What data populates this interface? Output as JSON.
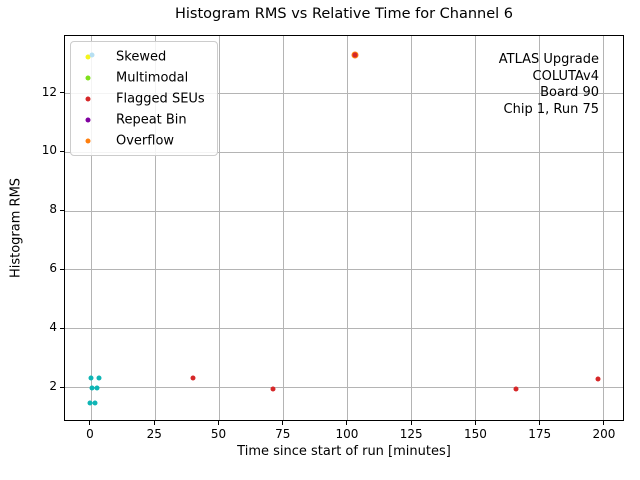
{
  "title": "Histogram RMS vs Relative Time for Channel 6",
  "axes": {
    "xlabel": "Time since start of run [minutes]",
    "ylabel": "Histogram RMS",
    "xticks": [
      0,
      25,
      50,
      75,
      100,
      125,
      150,
      175,
      200
    ],
    "yticks": [
      2,
      4,
      6,
      8,
      10,
      12
    ],
    "xlim": [
      -10.1,
      207.8
    ],
    "ylim": [
      0.86,
      13.95
    ],
    "grid": true,
    "grid_color": "#b4b4b4"
  },
  "legend": {
    "position": "upper-left",
    "items": [
      {
        "label": "Skewed",
        "marker_colors": [
          "#f4f51c",
          "#b6dff2"
        ]
      },
      {
        "label": "Multimodal",
        "marker_colors": [
          "#7fe01b"
        ]
      },
      {
        "label": "Flagged SEUs",
        "marker_colors": [
          "#d62728"
        ]
      },
      {
        "label": "Repeat Bin",
        "marker_colors": [
          "#8000a0"
        ]
      },
      {
        "label": "Overflow",
        "marker_colors": [
          "#ff7f0e"
        ]
      }
    ]
  },
  "annotation": {
    "lines": [
      "ATLAS Upgrade",
      "COLUTAv4",
      "Board 90",
      "Chip 1, Run 75"
    ]
  },
  "chart_data": {
    "type": "scatter",
    "title": "Histogram RMS vs Relative Time for Channel 6",
    "xlabel": "Time since start of run [minutes]",
    "ylabel": "Histogram RMS",
    "xlim": [
      -10.1,
      207.8
    ],
    "ylim": [
      0.86,
      13.95
    ],
    "grid": true,
    "legend_position": "upper-left",
    "series": [
      {
        "name": "normal",
        "color": "#0fb5b5",
        "marker_size": 5,
        "points": [
          [
            0,
            2.3
          ],
          [
            3,
            2.3
          ],
          [
            0.5,
            1.95
          ],
          [
            2.5,
            1.95
          ],
          [
            -0.5,
            1.45
          ],
          [
            1.5,
            1.45
          ]
        ]
      },
      {
        "name": "overflow",
        "color": "#ff7f0e",
        "marker_size": 7,
        "points": [
          [
            103,
            13.3
          ]
        ]
      },
      {
        "name": "flagged-seus",
        "color": "#d62728",
        "marker_size": 5,
        "points": [
          [
            40,
            2.3
          ],
          [
            71,
            1.9
          ],
          [
            103,
            13.3
          ],
          [
            166,
            1.9
          ],
          [
            198,
            2.25
          ]
        ]
      }
    ]
  }
}
